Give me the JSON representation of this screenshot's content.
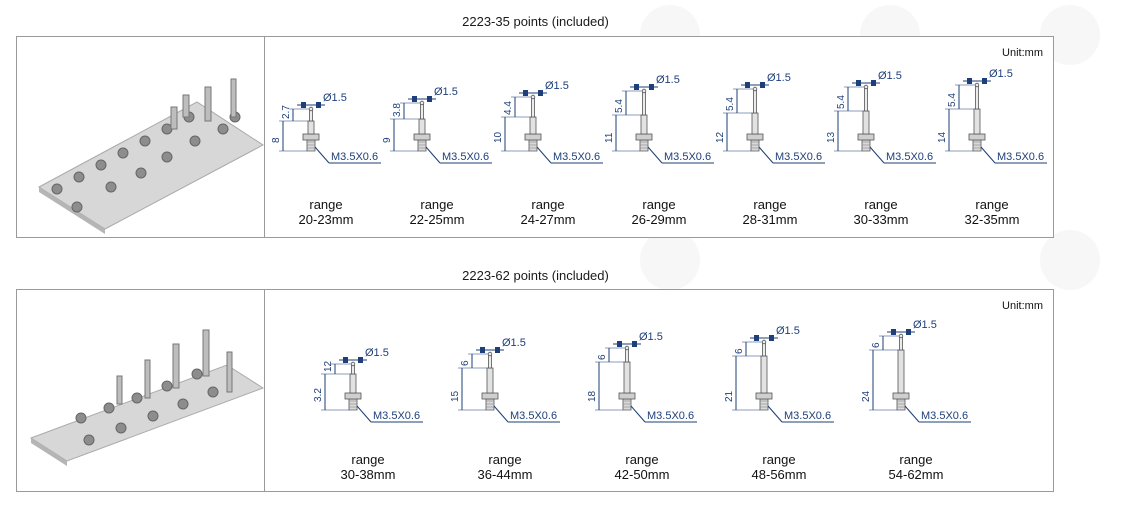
{
  "sections": [
    {
      "title": "2223-35 points (included)",
      "unit": "Unit:mm",
      "range_label": "range",
      "dia_label": "Ø1.5",
      "thread_label": "M3.5X0.6",
      "tips": [
        {
          "head": "2.7",
          "total": "8",
          "range": "20-23mm"
        },
        {
          "head": "3.8",
          "total": "9",
          "range": "22-25mm"
        },
        {
          "head": "4.4",
          "total": "10",
          "range": "24-27mm"
        },
        {
          "head": "5.4",
          "total": "11",
          "range": "26-29mm"
        },
        {
          "head": "5.4",
          "total": "12",
          "range": "28-31mm"
        },
        {
          "head": "5.4",
          "total": "13",
          "range": "30-33mm"
        },
        {
          "head": "5.4",
          "total": "14",
          "range": "32-35mm"
        }
      ]
    },
    {
      "title": "2223-62 points (included)",
      "unit": "Unit:mm",
      "range_label": "range",
      "dia_label": "Ø1.5",
      "thread_label": "M3.5X0.6",
      "tips": [
        {
          "head": "12",
          "total": "3.2",
          "range": "30-38mm"
        },
        {
          "head": "6",
          "total": "15",
          "range": "36-44mm"
        },
        {
          "head": "6",
          "total": "18",
          "range": "42-50mm"
        },
        {
          "head": "6",
          "total": "21",
          "range": "48-56mm"
        },
        {
          "head": "6",
          "total": "24",
          "range": "54-62mm"
        }
      ]
    }
  ],
  "colors": {
    "dimension": "#1e3f7a",
    "metal": "#c9c9c9",
    "border": "#9a9a9a"
  }
}
